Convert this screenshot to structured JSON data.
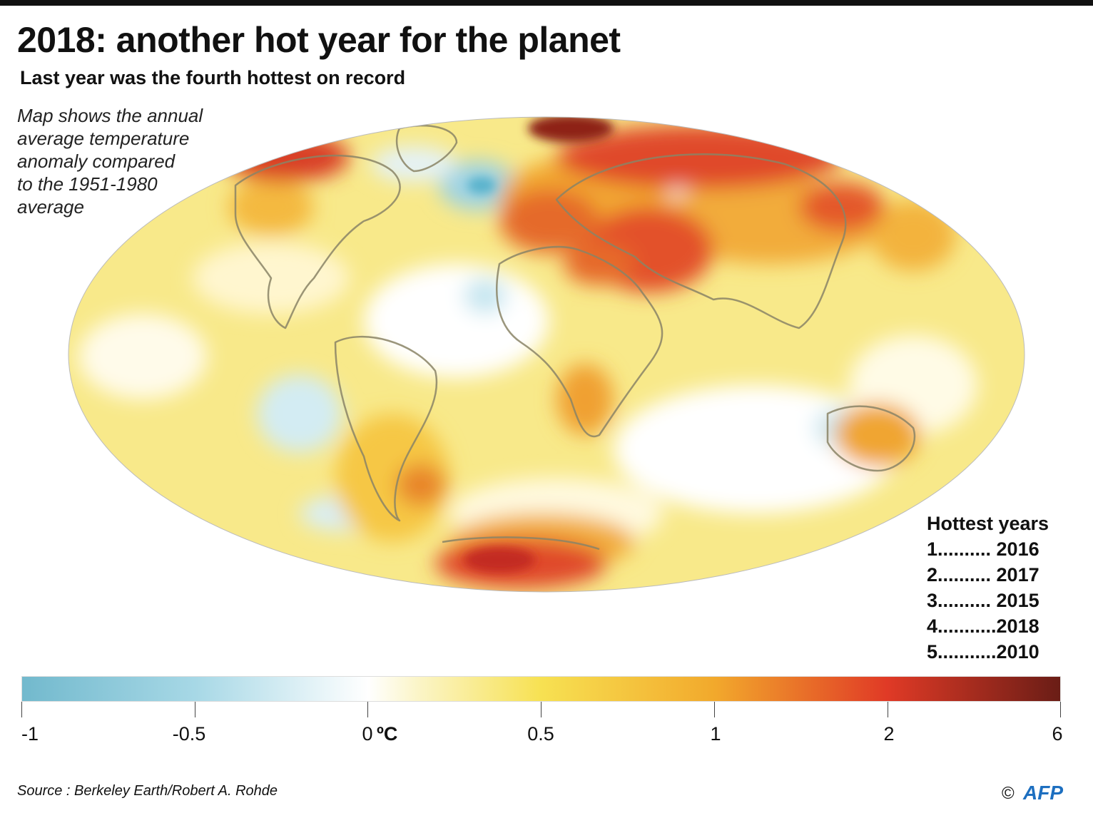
{
  "title": "2018: another hot year for the planet",
  "subtitle": "Last year was the fourth hottest on record",
  "note_lines": [
    "Map shows the annual",
    "average temperature",
    "anomaly compared",
    "to the 1951-1980",
    "average"
  ],
  "hottest": {
    "title": "Hottest years",
    "rows": [
      "1.......... 2016",
      "2.......... 2017",
      "3.......... 2015",
      "4...........2018",
      "5...........2010"
    ]
  },
  "colorbar": {
    "ticks": [
      "-1",
      "-0.5",
      "0",
      "0.5",
      "1",
      "2",
      "6"
    ],
    "unit": "ºC",
    "colors": [
      "#72b9cd",
      "#a7d8e6",
      "#ffffff",
      "#f7e152",
      "#f2a92c",
      "#e03a26",
      "#6a1d16"
    ]
  },
  "source": "Source : Berkeley Earth/Robert A. Rohde",
  "copyright": "©",
  "logo": "AFP"
}
